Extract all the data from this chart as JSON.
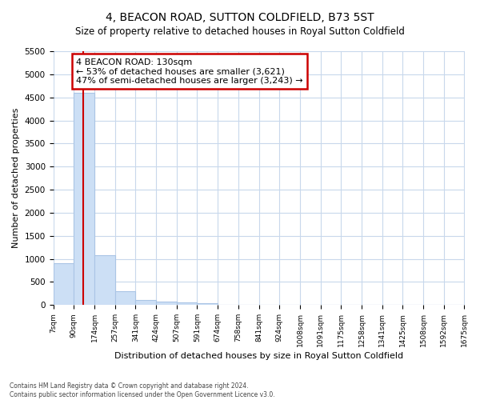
{
  "title": "4, BEACON ROAD, SUTTON COLDFIELD, B73 5ST",
  "subtitle": "Size of property relative to detached houses in Royal Sutton Coldfield",
  "xlabel": "Distribution of detached houses by size in Royal Sutton Coldfield",
  "ylabel": "Number of detached properties",
  "footnote1": "Contains HM Land Registry data © Crown copyright and database right 2024.",
  "footnote2": "Contains public sector information licensed under the Open Government Licence v3.0.",
  "annotation_line1": "4 BEACON ROAD: 130sqm",
  "annotation_line2": "← 53% of detached houses are smaller (3,621)",
  "annotation_line3": "47% of semi-detached houses are larger (3,243) →",
  "property_size": 130,
  "bin_edges": [
    7,
    90,
    174,
    257,
    341,
    424,
    507,
    591,
    674,
    758,
    841,
    924,
    1008,
    1091,
    1175,
    1258,
    1341,
    1425,
    1508,
    1592,
    1675
  ],
  "bin_counts": [
    900,
    4600,
    1080,
    290,
    100,
    80,
    50,
    30,
    0,
    0,
    0,
    0,
    0,
    0,
    0,
    0,
    0,
    0,
    0,
    0
  ],
  "bar_color": "#ccdff5",
  "bar_edge_color": "#aac5e5",
  "vline_color": "#cc0000",
  "annotation_box_color": "#cc0000",
  "grid_color": "#c8d8ec",
  "background_color": "#ffffff",
  "ylim": [
    0,
    5500
  ],
  "yticks": [
    0,
    500,
    1000,
    1500,
    2000,
    2500,
    3000,
    3500,
    4000,
    4500,
    5000,
    5500
  ],
  "x_tick_labels": [
    "7sqm",
    "90sqm",
    "174sqm",
    "257sqm",
    "341sqm",
    "424sqm",
    "507sqm",
    "591sqm",
    "674sqm",
    "758sqm",
    "841sqm",
    "924sqm",
    "1008sqm",
    "1091sqm",
    "1175sqm",
    "1258sqm",
    "1341sqm",
    "1425sqm",
    "1508sqm",
    "1592sqm",
    "1675sqm"
  ]
}
